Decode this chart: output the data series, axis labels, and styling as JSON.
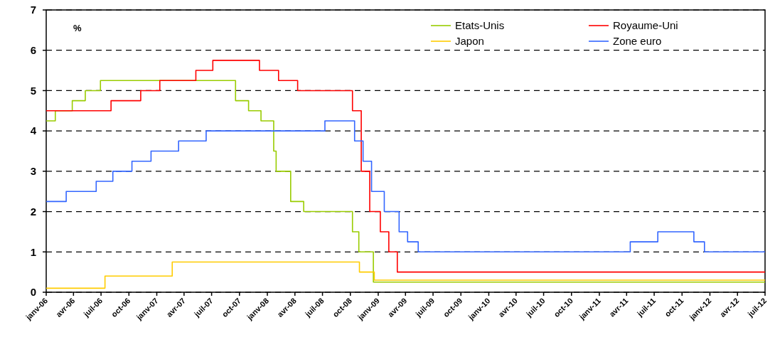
{
  "chart_data": {
    "type": "step",
    "annotations": [
      "%"
    ],
    "xlim": [
      "2006-01-01",
      "2012-07-01"
    ],
    "xticks": [
      {
        "value": "2006-01-01",
        "label": "janv-06"
      },
      {
        "value": "2006-04-01",
        "label": "avr-06"
      },
      {
        "value": "2006-07-01",
        "label": "juil-06"
      },
      {
        "value": "2006-10-01",
        "label": "oct-06"
      },
      {
        "value": "2007-01-01",
        "label": "janv-07"
      },
      {
        "value": "2007-04-01",
        "label": "avr-07"
      },
      {
        "value": "2007-07-01",
        "label": "juil-07"
      },
      {
        "value": "2007-10-01",
        "label": "oct-07"
      },
      {
        "value": "2008-01-01",
        "label": "janv-08"
      },
      {
        "value": "2008-04-01",
        "label": "avr-08"
      },
      {
        "value": "2008-07-01",
        "label": "juil-08"
      },
      {
        "value": "2008-10-01",
        "label": "oct-08"
      },
      {
        "value": "2009-01-01",
        "label": "janv-09"
      },
      {
        "value": "2009-04-01",
        "label": "avr-09"
      },
      {
        "value": "2009-07-01",
        "label": "juil-09"
      },
      {
        "value": "2009-10-01",
        "label": "oct-09"
      },
      {
        "value": "2010-01-01",
        "label": "janv-10"
      },
      {
        "value": "2010-04-01",
        "label": "avr-10"
      },
      {
        "value": "2010-07-01",
        "label": "juil-10"
      },
      {
        "value": "2010-10-01",
        "label": "oct-10"
      },
      {
        "value": "2011-01-01",
        "label": "janv-11"
      },
      {
        "value": "2011-04-01",
        "label": "avr-11"
      },
      {
        "value": "2011-07-01",
        "label": "juil-11"
      },
      {
        "value": "2011-10-01",
        "label": "oct-11"
      },
      {
        "value": "2012-01-01",
        "label": "janv-12"
      },
      {
        "value": "2012-04-01",
        "label": "avr-12"
      },
      {
        "value": "2012-07-01",
        "label": "juil-12"
      }
    ],
    "ylim": [
      0,
      7
    ],
    "yticks": [
      0,
      1,
      2,
      3,
      4,
      5,
      6,
      7
    ],
    "grid": "y",
    "legend": "top right",
    "line_style": "solid",
    "series": [
      {
        "name": "Etats-Unis",
        "color": "#99cc00",
        "x": [
          "2006-01-01",
          "2006-01-31",
          "2006-03-28",
          "2006-05-10",
          "2006-06-29",
          "2007-09-18",
          "2007-10-31",
          "2007-12-11",
          "2008-01-22",
          "2008-01-30",
          "2008-03-18",
          "2008-04-30",
          "2008-10-08",
          "2008-10-29",
          "2008-12-16",
          "2012-07-01"
        ],
        "values": [
          4.25,
          4.5,
          4.75,
          5,
          5.25,
          4.75,
          4.5,
          4.25,
          3.5,
          3,
          2.25,
          2,
          1.5,
          1,
          0.25,
          0.25
        ]
      },
      {
        "name": "Royaume-Uni",
        "color": "#ff0000",
        "x": [
          "2006-01-01",
          "2006-08-03",
          "2006-11-09",
          "2007-01-11",
          "2007-05-10",
          "2007-07-05",
          "2007-12-06",
          "2008-02-07",
          "2008-04-10",
          "2008-10-08",
          "2008-11-06",
          "2008-12-04",
          "2009-01-08",
          "2009-02-05",
          "2009-03-05",
          "2012-07-01"
        ],
        "values": [
          4.5,
          4.75,
          5,
          5.25,
          5.5,
          5.75,
          5.5,
          5.25,
          5,
          4.5,
          3,
          2,
          1.5,
          1,
          0.5,
          0.5
        ]
      },
      {
        "name": "Japon",
        "color": "#ffcc00",
        "x": [
          "2006-01-01",
          "2006-07-14",
          "2007-02-21",
          "2008-10-31",
          "2008-12-19",
          "2012-07-01"
        ],
        "values": [
          0.1,
          0.4,
          0.75,
          0.5,
          0.3,
          0.3
        ]
      },
      {
        "name": "Zone euro",
        "color": "#3366ff",
        "x": [
          "2006-01-01",
          "2006-03-08",
          "2006-06-15",
          "2006-08-09",
          "2006-10-11",
          "2006-12-13",
          "2007-03-14",
          "2007-06-13",
          "2008-07-09",
          "2008-10-15",
          "2008-11-12",
          "2008-12-10",
          "2009-01-21",
          "2009-03-11",
          "2009-04-08",
          "2009-05-13",
          "2011-04-13",
          "2011-07-13",
          "2011-11-09",
          "2011-12-14",
          "2012-07-01"
        ],
        "values": [
          2.25,
          2.5,
          2.75,
          3,
          3.25,
          3.5,
          3.75,
          4,
          4.25,
          3.75,
          3.25,
          2.5,
          2,
          1.5,
          1.25,
          1,
          1.25,
          1.5,
          1.25,
          1,
          1
        ]
      }
    ]
  }
}
